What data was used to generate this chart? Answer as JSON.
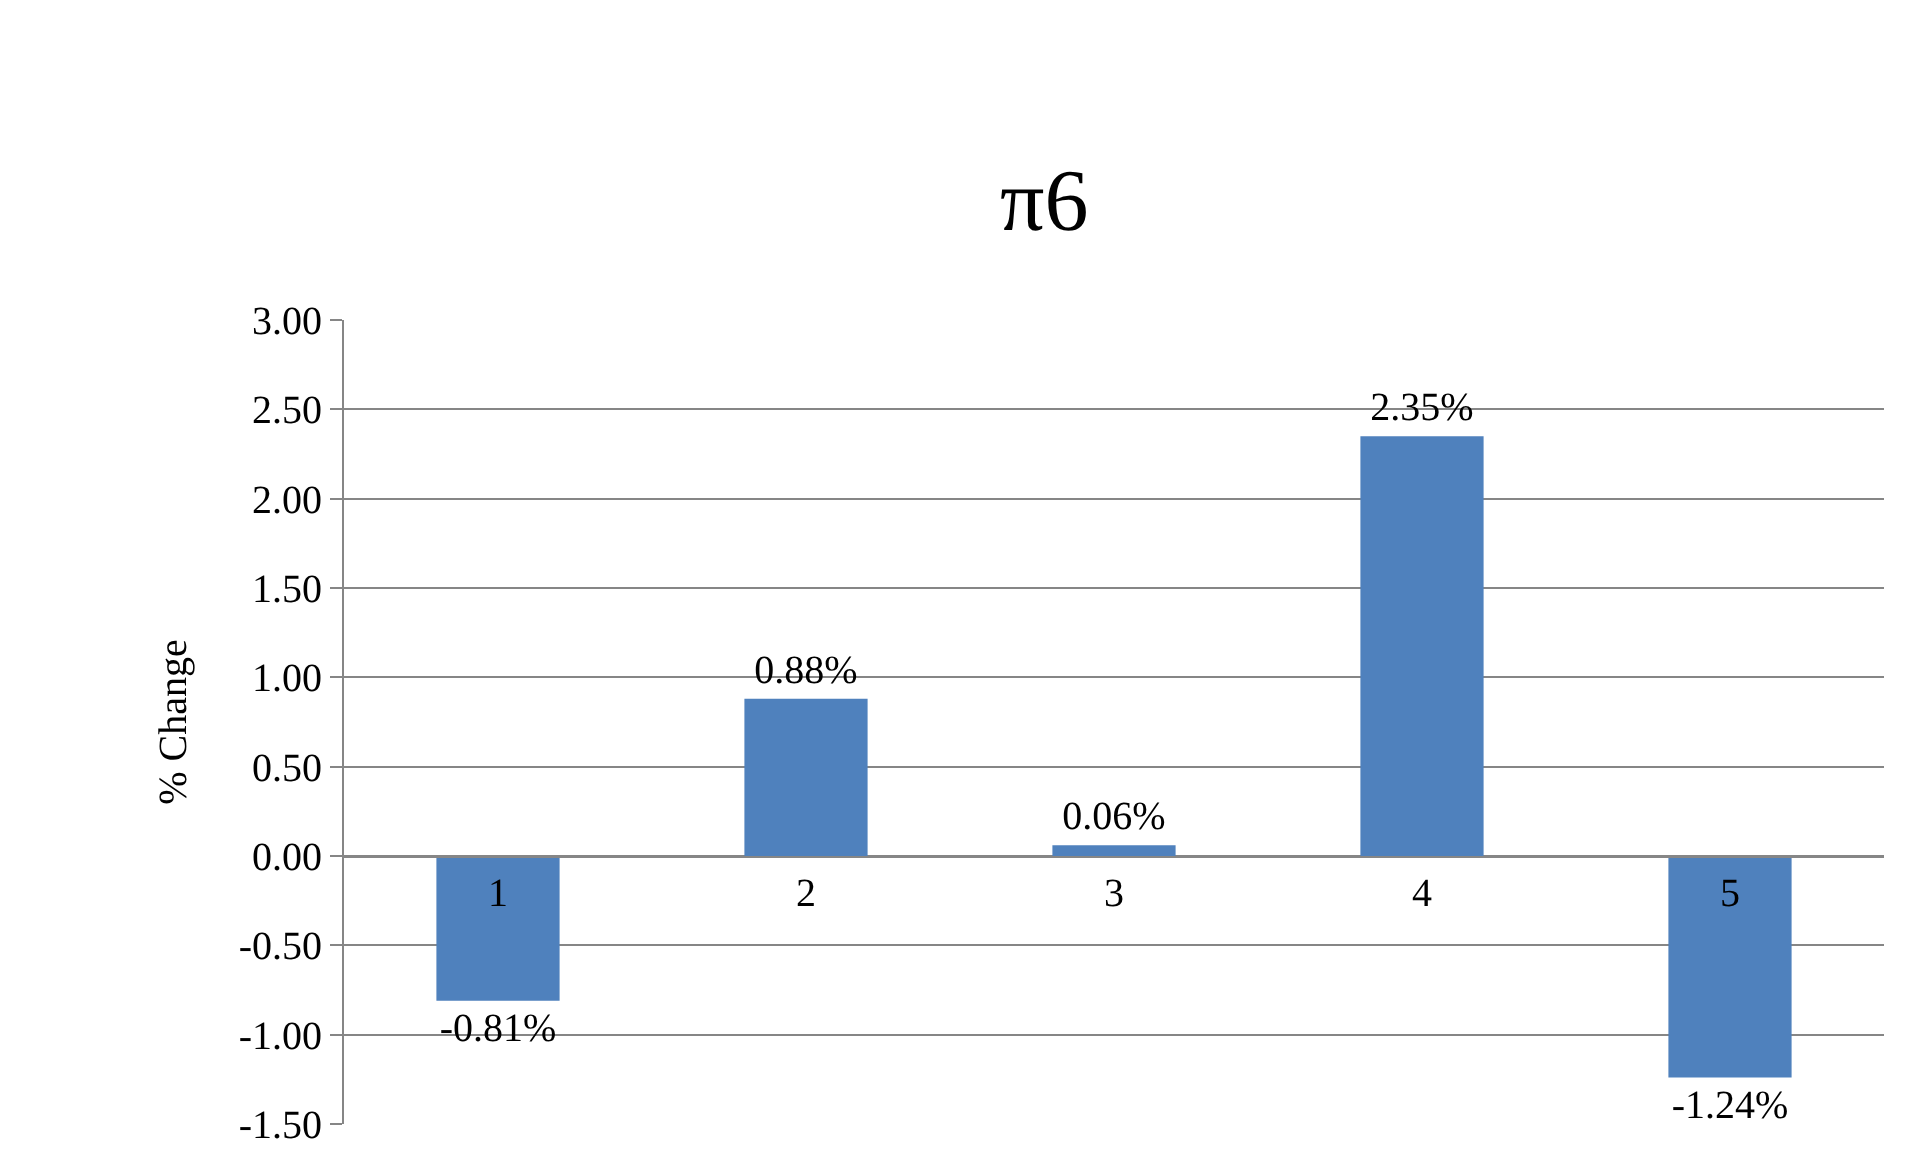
{
  "chart_data": {
    "type": "bar",
    "title": "π6",
    "ylabel": "% Change",
    "categories": [
      "1",
      "2",
      "3",
      "4",
      "5"
    ],
    "values": [
      -0.81,
      0.88,
      0.06,
      2.35,
      -1.24
    ],
    "value_labels": [
      "-0.81%",
      "0.88%",
      "0.06%",
      "2.35%",
      "-1.24%"
    ],
    "color": "#4f81bd",
    "ylim": [
      -1.5,
      3.0
    ],
    "yticks": [
      {
        "value": 3.0,
        "label": "3.00"
      },
      {
        "value": 2.5,
        "label": "2.50"
      },
      {
        "value": 2.0,
        "label": "2.00"
      },
      {
        "value": 1.5,
        "label": "1.50"
      },
      {
        "value": 1.0,
        "label": "1.00"
      },
      {
        "value": 0.5,
        "label": "0.50"
      },
      {
        "value": 0.0,
        "label": "0.00"
      },
      {
        "value": -0.5,
        "label": "-0.50"
      },
      {
        "value": -1.0,
        "label": "-1.00"
      },
      {
        "value": -1.5,
        "label": "-1.50"
      }
    ],
    "grid": "y",
    "legend": false
  }
}
